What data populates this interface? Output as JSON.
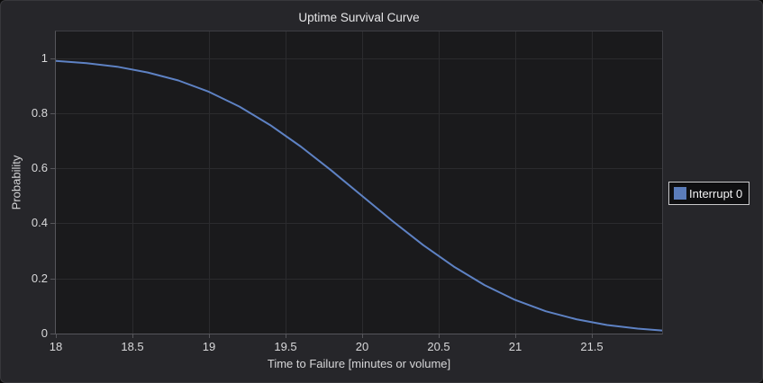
{
  "title": "Uptime Survival Curve",
  "colors": {
    "figure_bg": "#26262a",
    "plot_bg": "#1a1a1c",
    "grid": "#2b2b2e",
    "axis_line": "#56565b",
    "frame_line": "#3e3e43",
    "card_border": "#38383c",
    "text": "#e6e6e8",
    "tick_text": "#d8d8da",
    "label_text": "#d6d6d8",
    "line": "#5e82c4",
    "swatch": "#5b7cba",
    "legend_bg": "#0f0f11",
    "legend_border": "#c9c9cb"
  },
  "legend": {
    "items": [
      {
        "label": "Interrupt 0",
        "color": "#5b7cba"
      }
    ]
  },
  "chart_data": {
    "type": "line",
    "title": "Uptime Survival Curve",
    "xlabel": "Time to Failure [minutes or volume]",
    "ylabel": "Probability",
    "xlim": [
      18,
      21.96
    ],
    "ylim": [
      0,
      1.097
    ],
    "x_tick_values": [
      18,
      18.5,
      19,
      19.5,
      20,
      20.5,
      21,
      21.5
    ],
    "x_tick_labels": [
      "18",
      "18.5",
      "19",
      "19.5",
      "20",
      "20.5",
      "21",
      "21.5"
    ],
    "y_tick_values": [
      0,
      0.2,
      0.4,
      0.6,
      0.8,
      1
    ],
    "y_tick_labels": [
      "0",
      "0.2",
      "0.4",
      "0.6",
      "0.8",
      "1"
    ],
    "grid": true,
    "legend_position": "right",
    "series": [
      {
        "name": "Interrupt 0",
        "color": "#5e82c4",
        "x": [
          18,
          18.2,
          18.4,
          18.6,
          18.8,
          19,
          19.2,
          19.4,
          19.6,
          19.8,
          20,
          20.2,
          20.4,
          20.6,
          20.8,
          21,
          21.2,
          21.4,
          21.6,
          21.8,
          21.96
        ],
        "y": [
          0.99,
          0.982,
          0.969,
          0.948,
          0.919,
          0.878,
          0.824,
          0.757,
          0.679,
          0.592,
          0.5,
          0.408,
          0.321,
          0.243,
          0.176,
          0.122,
          0.081,
          0.052,
          0.031,
          0.018,
          0.011
        ]
      }
    ]
  }
}
